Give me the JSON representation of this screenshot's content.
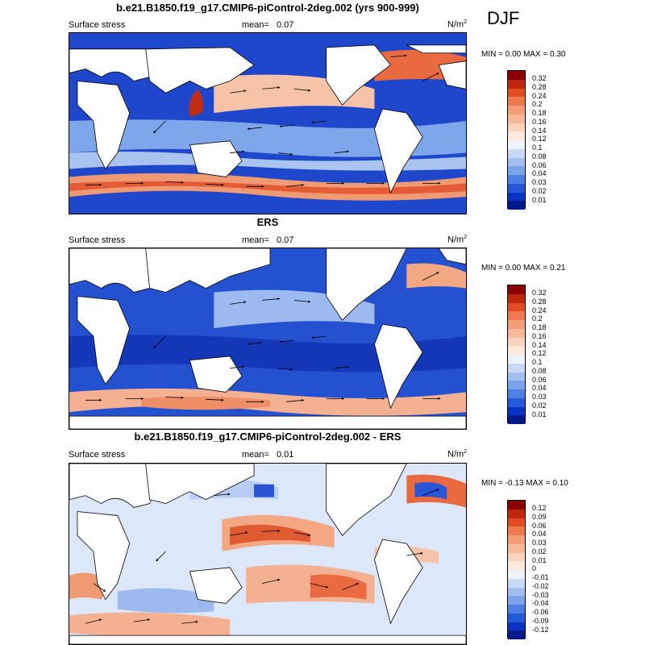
{
  "season": "DJF",
  "panels": [
    {
      "title": "b.e21.B1850.f19_g17.CMIP6-piControl-2deg.002 (yrs 900-999)",
      "left_label": "Surface stress",
      "mean_label": "mean=",
      "mean_value": "0.07",
      "units": "N/m",
      "units_sup": "2",
      "minmax": "MIN =  0.00 MAX =   0.30",
      "colorbar": {
        "labels": [
          "0.32",
          "0.28",
          "0.24",
          "0.2",
          "0.18",
          "0.16",
          "0.14",
          "0.12",
          "0.1",
          "0.08",
          "0.06",
          "0.04",
          "0.03",
          "0.02",
          "0.01"
        ],
        "colors": [
          "#8b0000",
          "#c0260e",
          "#e34b22",
          "#ef7a4e",
          "#f59d77",
          "#f8b99b",
          "#fbd3bc",
          "#fde9dc",
          "#eef2fb",
          "#c9d9f5",
          "#a3bff0",
          "#7aa3ea",
          "#4d7fe4",
          "#2658da",
          "#0a32c4",
          "#001a8a"
        ]
      }
    },
    {
      "title": "ERS",
      "left_label": "Surface stress",
      "mean_label": "mean=",
      "mean_value": "0.07",
      "units": "N/m",
      "units_sup": "2",
      "minmax": "MIN =  0.00 MAX =   0.21",
      "colorbar": {
        "labels": [
          "0.32",
          "0.28",
          "0.24",
          "0.2",
          "0.18",
          "0.16",
          "0.14",
          "0.12",
          "0.1",
          "0.08",
          "0.06",
          "0.04",
          "0.03",
          "0.02",
          "0.01"
        ],
        "colors": [
          "#8b0000",
          "#c0260e",
          "#e34b22",
          "#ef7a4e",
          "#f59d77",
          "#f8b99b",
          "#fbd3bc",
          "#fde9dc",
          "#eef2fb",
          "#c9d9f5",
          "#a3bff0",
          "#7aa3ea",
          "#4d7fe4",
          "#2658da",
          "#0a32c4",
          "#001a8a"
        ]
      }
    },
    {
      "title": "b.e21.B1850.f19_g17.CMIP6-piControl-2deg.002 - ERS",
      "left_label": "Surface stress",
      "mean_label": "mean=",
      "mean_value": "0.01",
      "units": "N/m",
      "units_sup": "2",
      "minmax": "MIN =  -0.13 MAX =   0.10",
      "colorbar": {
        "labels": [
          "0.12",
          "0.09",
          "0.06",
          "0.04",
          "0.03",
          "0.02",
          "0.01",
          "0",
          "-0.01",
          "-0.02",
          "-0.03",
          "-0.04",
          "-0.06",
          "-0.09",
          "-0.12"
        ],
        "colors": [
          "#8b0000",
          "#c0260e",
          "#e34b22",
          "#ef7a4e",
          "#f59d77",
          "#f8b99b",
          "#fbd3bc",
          "#fde9dc",
          "#eef2fb",
          "#c9d9f5",
          "#a3bff0",
          "#7aa3ea",
          "#4d7fe4",
          "#2658da",
          "#0a32c4",
          "#001a8a"
        ]
      }
    }
  ]
}
